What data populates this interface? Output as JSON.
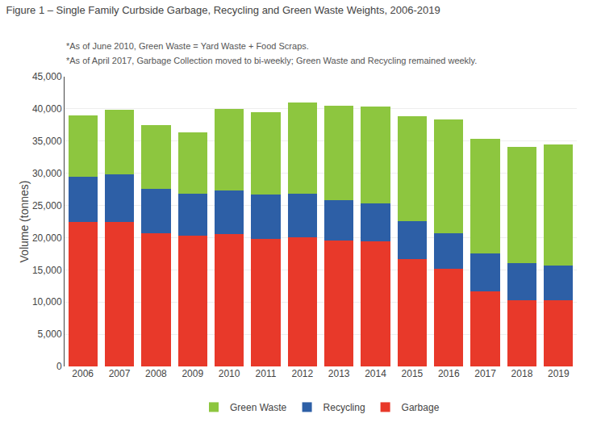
{
  "chart_data": {
    "type": "bar",
    "stacked": true,
    "title": "Figure 1 – Single Family Curbside Garbage, Recycling and Green Waste Weights, 2006-2019",
    "subtitle": [
      "*As of June 2010, Green Waste = Yard Waste + Food Scraps.",
      "*As of April 2017, Garbage Collection moved to bi-weekly; Green Waste and Recycling remained weekly."
    ],
    "ylabel": "Volume (tonnes)",
    "categories": [
      "2006",
      "2007",
      "2008",
      "2009",
      "2010",
      "2011",
      "2012",
      "2013",
      "2014",
      "2015",
      "2016",
      "2017",
      "2018",
      "2019"
    ],
    "series": [
      {
        "name": "Garbage",
        "color": "#e8392a",
        "values": [
          22400,
          22500,
          20700,
          20300,
          20500,
          19800,
          20000,
          19600,
          19400,
          16700,
          15200,
          11700,
          10300,
          10300
        ]
      },
      {
        "name": "Recycling",
        "color": "#2d5fa6",
        "values": [
          7100,
          7300,
          6900,
          6500,
          6800,
          6900,
          6800,
          6200,
          5900,
          5900,
          5500,
          5900,
          5700,
          5400
        ]
      },
      {
        "name": "Green Waste",
        "color": "#8dc63f",
        "values": [
          9500,
          10000,
          9900,
          9600,
          12700,
          12800,
          14200,
          14700,
          15100,
          16200,
          17700,
          17800,
          18100,
          18800
        ]
      }
    ],
    "ylim": [
      0,
      45000
    ],
    "yticks": [
      0,
      {
        "value": 5000,
        "label": "5,000"
      },
      {
        "value": 10000,
        "label": "10,000"
      },
      {
        "value": 15000,
        "label": "15,000"
      },
      {
        "value": 20000,
        "label": "20,000"
      },
      {
        "value": 25000,
        "label": "25,000"
      },
      {
        "value": 30000,
        "label": "30,000"
      },
      {
        "value": 35000,
        "label": "35,000"
      },
      {
        "value": 40000,
        "label": "40,000"
      },
      {
        "value": 45000,
        "label": "45,000"
      }
    ],
    "grid": true,
    "legend": "bottom"
  }
}
